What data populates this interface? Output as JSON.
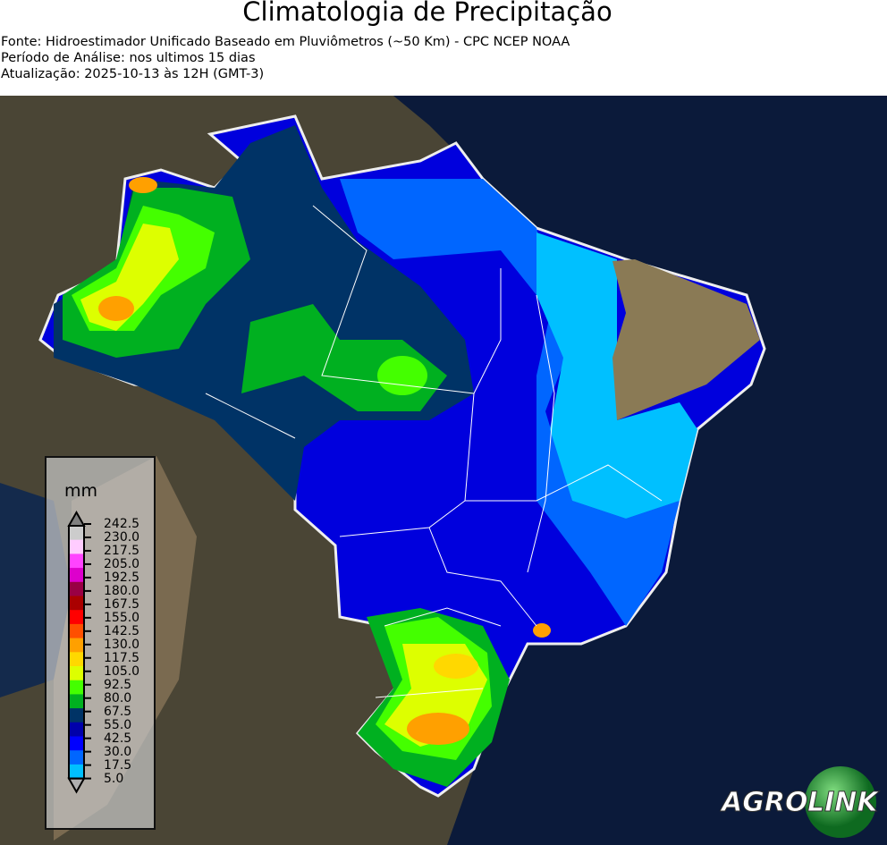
{
  "header": {
    "title": "Climatologia de Precipitação",
    "source": "Fonte: Hidroestimador Unificado Baseado em Pluviômetros (~50 Km) - CPC NCEP NOAA",
    "period": "Período de Análise: nos ultimos 15 dias",
    "updated": "Atualização: 2025-10-13 às 12H (GMT-3)"
  },
  "legend": {
    "unit": "mm",
    "ticks": [
      "242.5",
      "230.0",
      "217.5",
      "205.0",
      "192.5",
      "180.0",
      "167.5",
      "155.0",
      "142.5",
      "130.0",
      "117.5",
      "105.0",
      "92.5",
      "80.0",
      "67.5",
      "55.0",
      "42.5",
      "30.0",
      "17.5",
      "5.0"
    ],
    "colors_top_to_bottom": [
      "#cccccc",
      "#ffccff",
      "#ff44ff",
      "#dd00cc",
      "#990044",
      "#aa0000",
      "#ff0000",
      "#ff5000",
      "#ffa000",
      "#ffd800",
      "#ddff00",
      "#44ff00",
      "#00b020",
      "#003366",
      "#0000aa",
      "#0000ff",
      "#0066ff",
      "#00c0ff"
    ],
    "over_color": "#808080",
    "under_color": "#b0b0b0"
  },
  "logo": {
    "text_left": "AGRO",
    "text_right": "LINK"
  },
  "colors": {
    "ocean": "#0b1a3a",
    "land": "#4a4535",
    "semiarid": "#8a7a55"
  }
}
